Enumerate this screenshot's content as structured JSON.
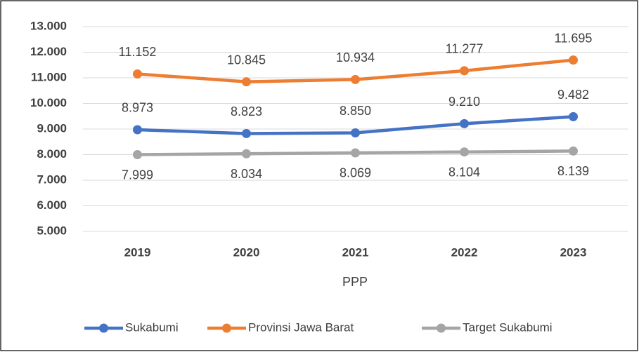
{
  "chart_data": {
    "type": "line",
    "xlabel": "PPP",
    "categories": [
      "2019",
      "2020",
      "2021",
      "2022",
      "2023"
    ],
    "series": [
      {
        "name": "Sukabumi",
        "color": "#4472c4",
        "values": [
          8973,
          8823,
          8850,
          9210,
          9482
        ],
        "value_labels": [
          "8.973",
          "8.823",
          "8.850",
          "9.210",
          "9.482"
        ],
        "label_position": "above"
      },
      {
        "name": "Provinsi Jawa Barat",
        "color": "#ed7d31",
        "values": [
          11152,
          10845,
          10934,
          11277,
          11695
        ],
        "value_labels": [
          "11.152",
          "10.845",
          "10.934",
          "11.277",
          "11.695"
        ],
        "label_position": "above"
      },
      {
        "name": "Target Sukabumi",
        "color": "#a5a5a5",
        "values": [
          7999,
          8034,
          8069,
          8104,
          8139
        ],
        "value_labels": [
          "7.999",
          "8.034",
          "8.069",
          "8.104",
          "8.139"
        ],
        "label_position": "below"
      }
    ],
    "ylim": [
      5000,
      13000
    ],
    "yticks": [
      {
        "value": 5000,
        "label": "5.000"
      },
      {
        "value": 6000,
        "label": "6.000"
      },
      {
        "value": 7000,
        "label": "7.000"
      },
      {
        "value": 8000,
        "label": "8.000"
      },
      {
        "value": 9000,
        "label": "9.000"
      },
      {
        "value": 10000,
        "label": "10.000"
      },
      {
        "value": 11000,
        "label": "11.000"
      },
      {
        "value": 12000,
        "label": "12.000"
      },
      {
        "value": 13000,
        "label": "13.000"
      }
    ],
    "grid": true,
    "legend": "bottom"
  }
}
